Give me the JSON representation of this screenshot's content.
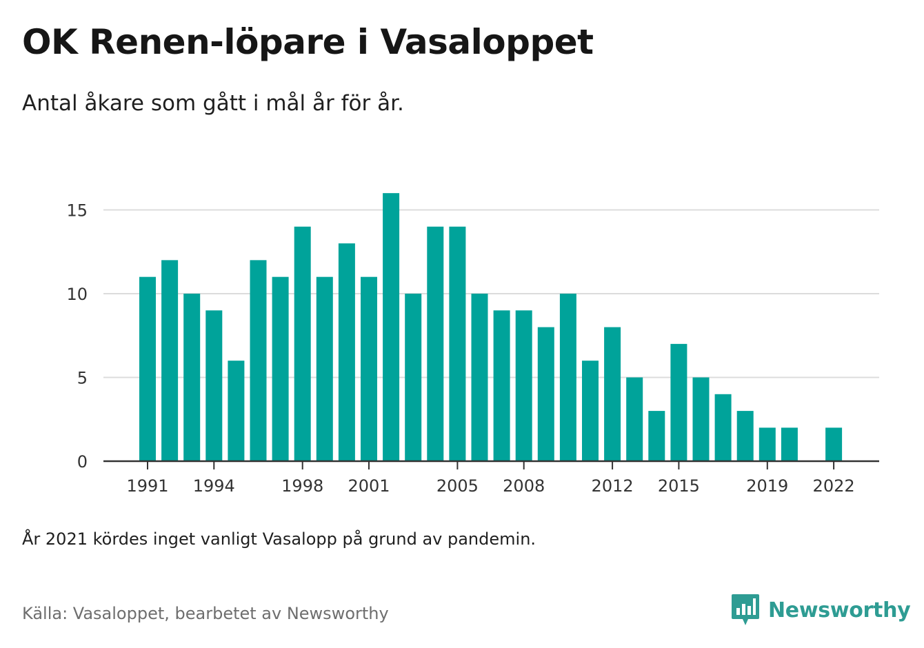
{
  "title": "OK Renen-löpare i Vasaloppet",
  "subtitle": "Antal åkare som gått i mål år för år.",
  "note": "År 2021 kördes inget vanligt Vasalopp på grund av pandemin.",
  "source": "Källa: Vasaloppet, bearbetet av Newsworthy",
  "brand": {
    "name": "Newsworthy",
    "color": "#2e9c93",
    "icon": "newsworthy-logo-icon"
  },
  "colors": {
    "bar": "#00a39a",
    "grid": "#dcdcdc",
    "axis": "#333333"
  },
  "chart_data": {
    "type": "bar",
    "x": [
      1991,
      1992,
      1993,
      1994,
      1995,
      1996,
      1997,
      1998,
      1999,
      2000,
      2001,
      2002,
      2003,
      2004,
      2005,
      2006,
      2007,
      2008,
      2009,
      2010,
      2011,
      2012,
      2013,
      2014,
      2015,
      2016,
      2017,
      2018,
      2019,
      2020,
      2021,
      2022
    ],
    "values": [
      11,
      12,
      10,
      9,
      6,
      12,
      11,
      14,
      11,
      13,
      11,
      16,
      10,
      14,
      14,
      10,
      9,
      9,
      8,
      10,
      6,
      8,
      5,
      3,
      7,
      5,
      4,
      3,
      2,
      2,
      null,
      2
    ],
    "x_ticks": [
      "1991",
      "1994",
      "1998",
      "2001",
      "2005",
      "2008",
      "2012",
      "2015",
      "2019",
      "2022"
    ],
    "y_ticks": [
      "0",
      "5",
      "10",
      "15"
    ],
    "ylim": [
      0,
      16.5
    ],
    "xlabel": "",
    "ylabel": "",
    "grid": true,
    "legend": false
  }
}
